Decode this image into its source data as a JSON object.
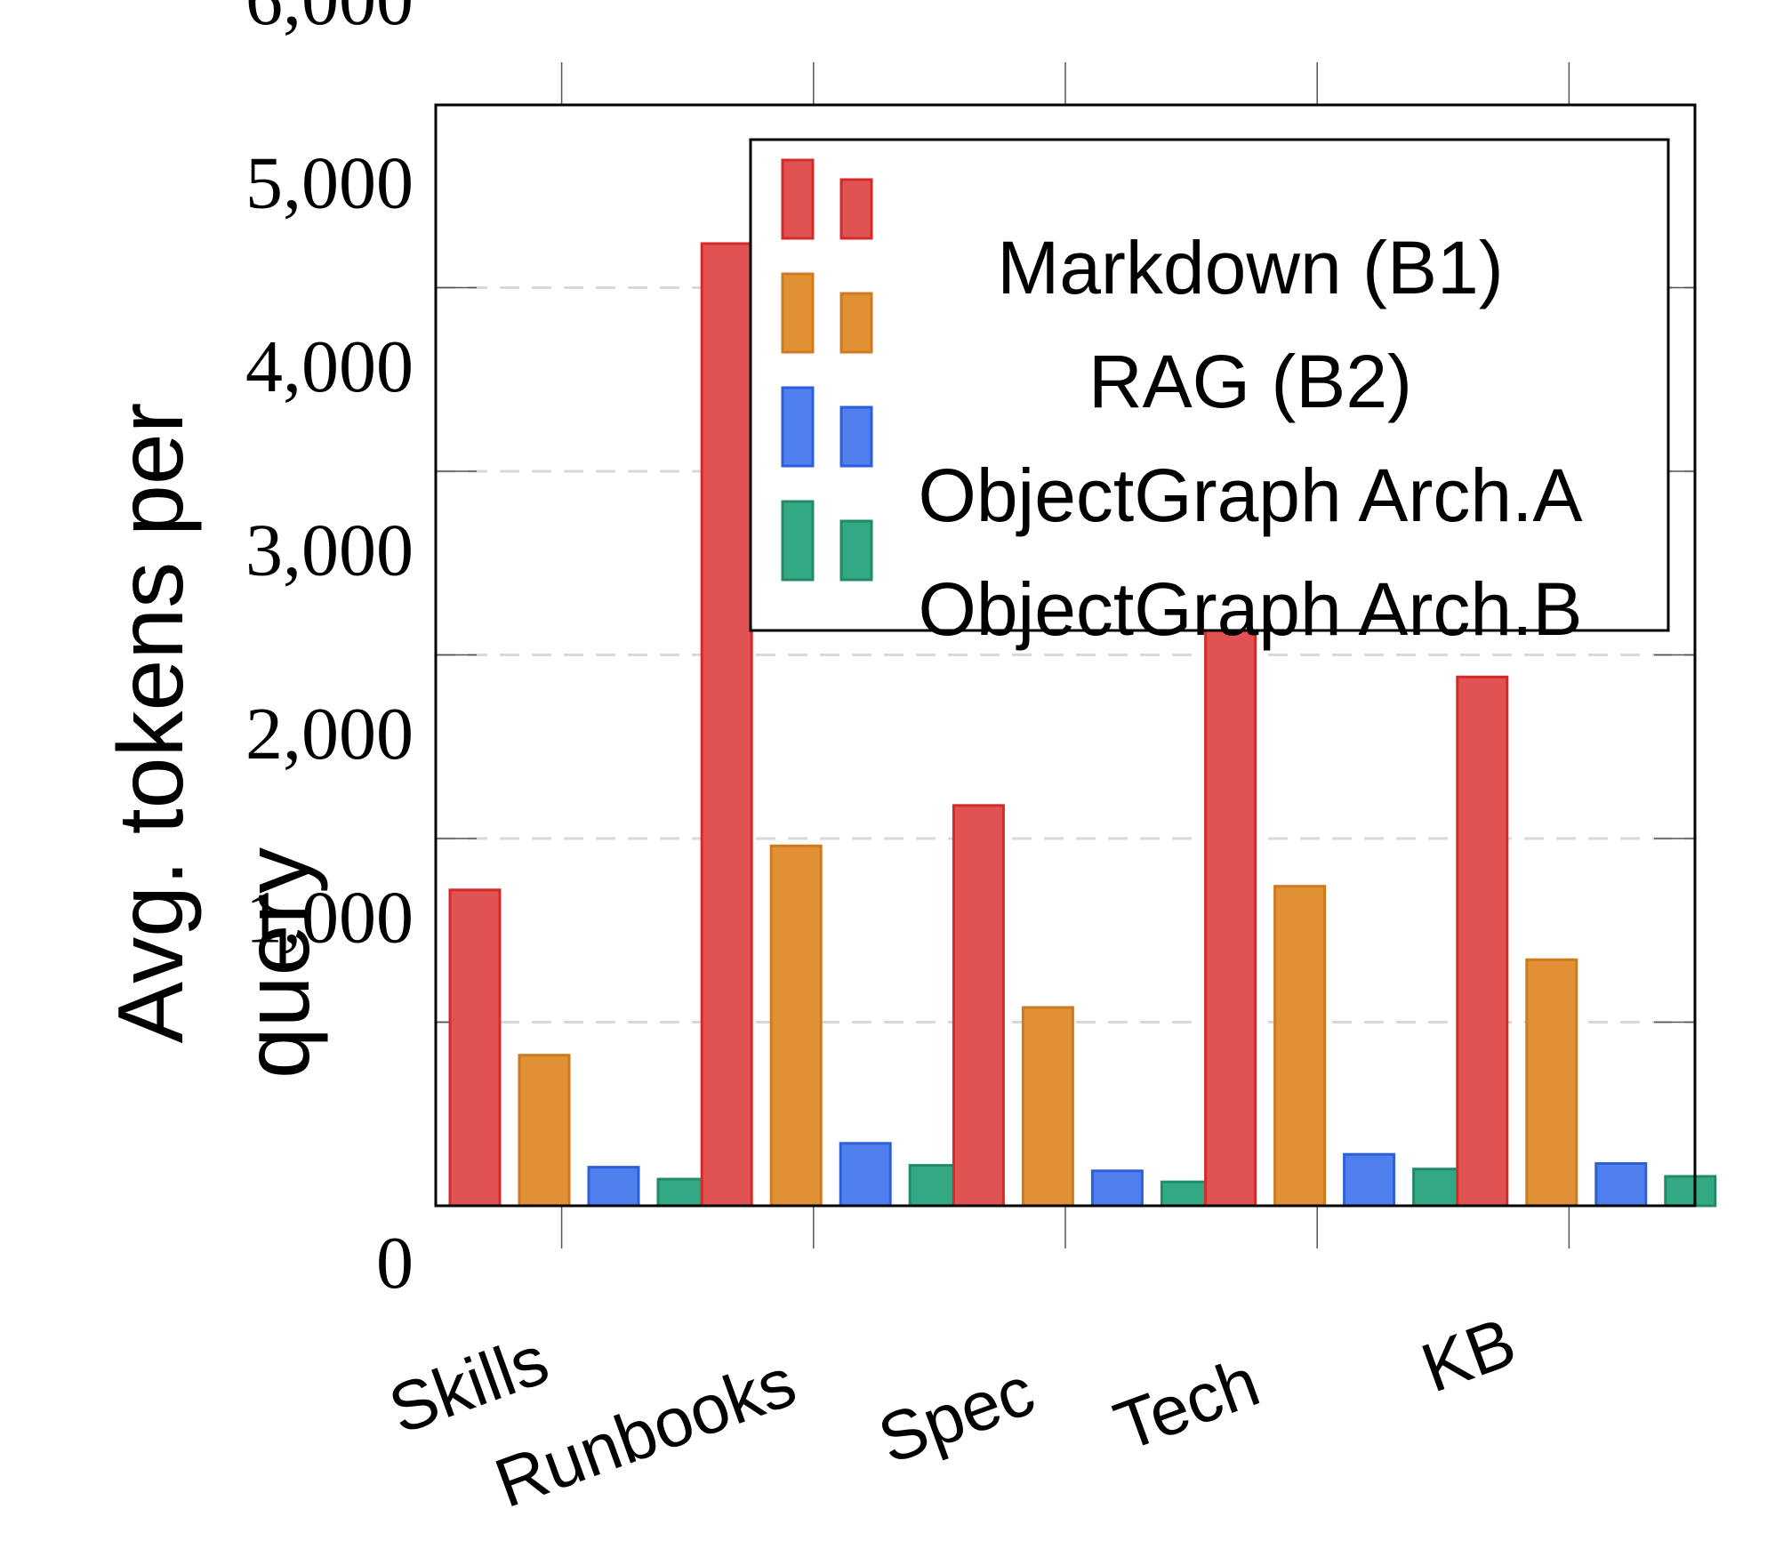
{
  "chart_data": {
    "type": "bar",
    "categories": [
      "Skills",
      "Runbooks",
      "Spec",
      "Tech",
      "KB"
    ],
    "series": [
      {
        "name": "Markdown (B1)",
        "color": "#e15252",
        "stroke": "#d42a2a",
        "values": [
          1720,
          5240,
          2180,
          3150,
          2880
        ]
      },
      {
        "name": "RAG (B2)",
        "color": "#e09035",
        "stroke": "#cf7a1c",
        "values": [
          820,
          1960,
          1080,
          1740,
          1340
        ]
      },
      {
        "name": "ObjectGraph Arch.A",
        "color": "#4f80ee",
        "stroke": "#2e5fd8",
        "values": [
          210,
          340,
          190,
          280,
          230
        ]
      },
      {
        "name": "ObjectGraph Arch.B",
        "color": "#32a884",
        "stroke": "#1f8c67",
        "values": [
          145,
          220,
          130,
          200,
          160
        ]
      }
    ],
    "yticks": [
      "0",
      "1,000",
      "2,000",
      "3,000",
      "4,000",
      "5,000",
      "6,000"
    ],
    "ylim": [
      0,
      6000
    ],
    "ylabel_line1": "Avg. tokens per",
    "ylabel_line2": "query",
    "xlabel": "",
    "grid": "horizontal dashed",
    "legend_position": "top-right"
  }
}
